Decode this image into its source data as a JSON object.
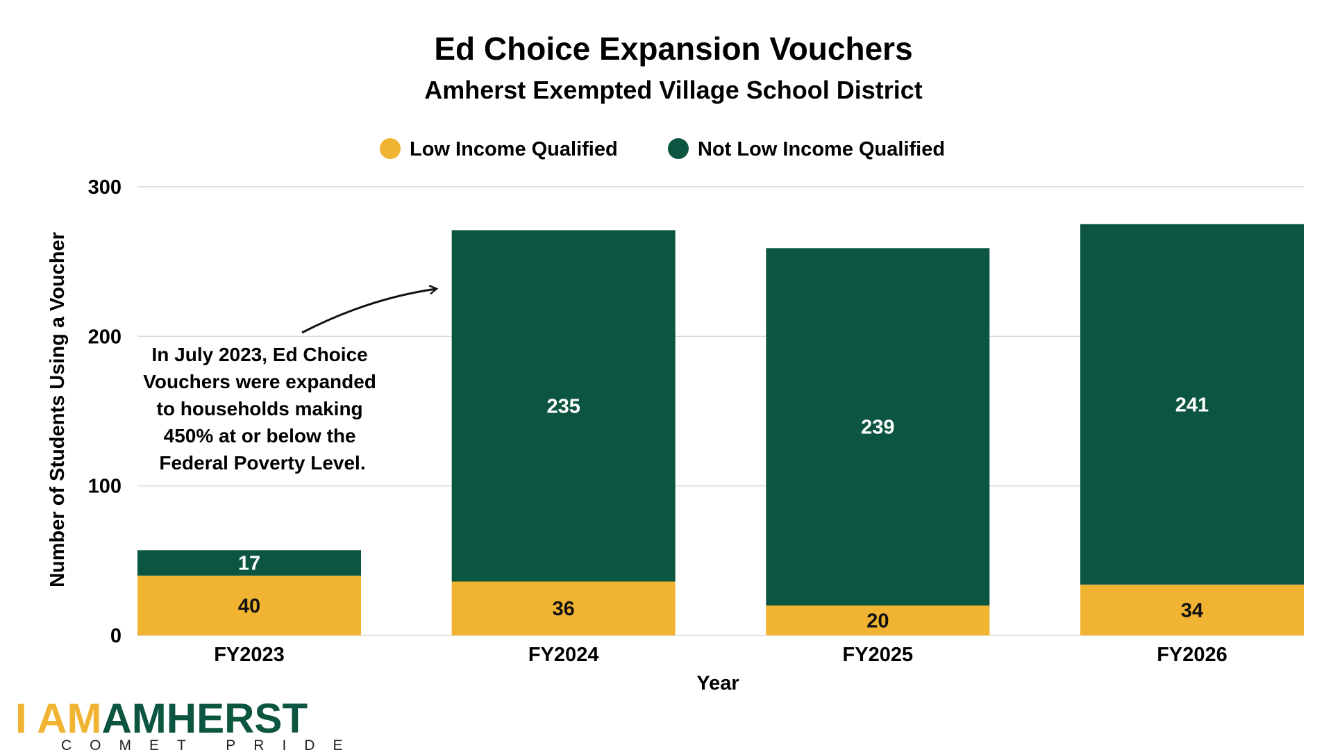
{
  "chart_data": {
    "type": "bar",
    "stacked": true,
    "title": "Ed Choice Expansion Vouchers",
    "subtitle": "Amherst Exempted Village School District",
    "xlabel": "Year",
    "ylabel": "Number of Students Using a Voucher",
    "ylim": [
      0,
      300
    ],
    "yticks": [
      0,
      100,
      200,
      300
    ],
    "grid": true,
    "legend_position": "top",
    "categories": [
      "FY2023",
      "FY2024",
      "FY2025",
      "FY2026"
    ],
    "series": [
      {
        "name": "Low Income Qualified",
        "color": "#F0B432",
        "values": [
          40,
          36,
          20,
          34
        ]
      },
      {
        "name": "Not Low Income Qualified",
        "color": "#0C5540",
        "values": [
          17,
          235,
          239,
          241
        ]
      }
    ],
    "annotation": {
      "lines": [
        "In July 2023, Ed Choice",
        "Vouchers were expanded",
        "to households making",
        "450% at or below the",
        "Federal Poverty Level."
      ],
      "points_to": "FY2024"
    }
  },
  "logo": {
    "part1": "I AM",
    "part2": "AMHERST",
    "tagline": "COMET PRIDE",
    "color1": "#F0B432",
    "color2": "#0C5540"
  }
}
